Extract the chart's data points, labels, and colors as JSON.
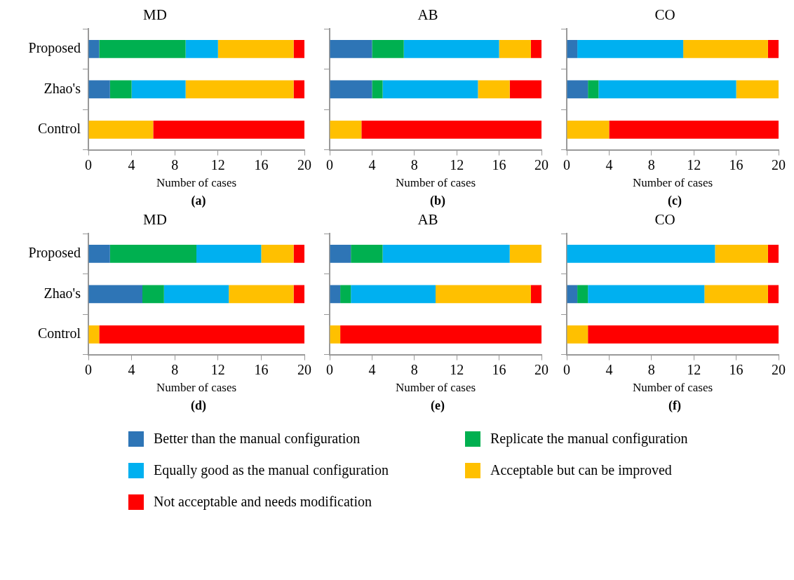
{
  "chart_data": [
    {
      "type": "bar",
      "orientation": "horizontal",
      "stacked": true,
      "title": "MD",
      "xlabel": "Number of cases",
      "annotations": [
        "(a)"
      ],
      "categories": [
        "Proposed",
        "Zhao's",
        "Control"
      ],
      "xlim": [
        0,
        20
      ],
      "xticks": [
        0,
        4,
        8,
        12,
        16,
        20
      ],
      "grid": false,
      "legend": "bottom",
      "series": [
        {
          "name": "Better than the manual configuration",
          "color": "#2e75b6",
          "values": [
            1,
            2,
            0
          ]
        },
        {
          "name": "Replicate the manual configuration",
          "color": "#00b050",
          "values": [
            8,
            2,
            0
          ]
        },
        {
          "name": "Equally good as the manual configuration",
          "color": "#00b0f0",
          "values": [
            3,
            5,
            0
          ]
        },
        {
          "name": "Acceptable but can be improved",
          "color": "#ffc000",
          "values": [
            7,
            10,
            6
          ]
        },
        {
          "name": "Not acceptable and needs modification",
          "color": "#ff0000",
          "values": [
            1,
            1,
            14
          ]
        }
      ]
    },
    {
      "type": "bar",
      "orientation": "horizontal",
      "stacked": true,
      "title": "AB",
      "xlabel": "Number of cases",
      "annotations": [
        "(b)"
      ],
      "categories": [
        null,
        null,
        null
      ],
      "xlim": [
        0,
        20
      ],
      "xticks": [
        0,
        4,
        8,
        12,
        16,
        20
      ],
      "grid": false,
      "tick_labels": "x",
      "series": [
        {
          "color": "#2e75b6",
          "values": [
            4,
            4,
            0
          ]
        },
        {
          "color": "#00b050",
          "values": [
            3,
            1,
            0
          ]
        },
        {
          "color": "#00b0f0",
          "values": [
            9,
            9,
            0
          ]
        },
        {
          "color": "#ffc000",
          "values": [
            3,
            3,
            3
          ]
        },
        {
          "color": "#ff0000",
          "values": [
            1,
            3,
            17
          ]
        }
      ]
    },
    {
      "type": "bar",
      "orientation": "horizontal",
      "stacked": true,
      "title": "CO",
      "xlabel": "Number of cases",
      "annotations": [
        "(c)"
      ],
      "categories": [
        null,
        null,
        null
      ],
      "xlim": [
        0,
        20
      ],
      "xticks": [
        0,
        4,
        8,
        12,
        16,
        20
      ],
      "grid": false,
      "tick_labels": "x",
      "series": [
        {
          "color": "#2e75b6",
          "values": [
            1,
            2,
            0
          ]
        },
        {
          "color": "#00b050",
          "values": [
            0,
            1,
            0
          ]
        },
        {
          "color": "#00b0f0",
          "values": [
            10,
            13,
            0
          ]
        },
        {
          "color": "#ffc000",
          "values": [
            8,
            4,
            4
          ]
        },
        {
          "color": "#ff0000",
          "values": [
            1,
            0,
            16
          ]
        }
      ]
    },
    {
      "type": "bar",
      "orientation": "horizontal",
      "stacked": true,
      "title": "MD",
      "xlabel": "Number of cases",
      "annotations": [
        "(d)"
      ],
      "categories": [
        "Proposed",
        "Zhao's",
        "Control"
      ],
      "xlim": [
        0,
        20
      ],
      "xticks": [
        0,
        4,
        8,
        12,
        16,
        20
      ],
      "grid": false,
      "series": [
        {
          "color": "#2e75b6",
          "values": [
            2,
            5,
            0
          ]
        },
        {
          "color": "#00b050",
          "values": [
            8,
            2,
            0
          ]
        },
        {
          "color": "#00b0f0",
          "values": [
            6,
            6,
            0
          ]
        },
        {
          "color": "#ffc000",
          "values": [
            3,
            6,
            1
          ]
        },
        {
          "color": "#ff0000",
          "values": [
            1,
            1,
            19
          ]
        }
      ]
    },
    {
      "type": "bar",
      "orientation": "horizontal",
      "stacked": true,
      "title": "AB",
      "xlabel": "Number of cases",
      "annotations": [
        "(e)"
      ],
      "categories": [
        null,
        null,
        null
      ],
      "xlim": [
        0,
        20
      ],
      "xticks": [
        0,
        4,
        8,
        12,
        16,
        20
      ],
      "grid": false,
      "tick_labels": "x",
      "series": [
        {
          "color": "#2e75b6",
          "values": [
            2,
            1,
            0
          ]
        },
        {
          "color": "#00b050",
          "values": [
            3,
            1,
            0
          ]
        },
        {
          "color": "#00b0f0",
          "values": [
            12,
            8,
            0
          ]
        },
        {
          "color": "#ffc000",
          "values": [
            3,
            9,
            1
          ]
        },
        {
          "color": "#ff0000",
          "values": [
            0,
            1,
            19
          ]
        }
      ]
    },
    {
      "type": "bar",
      "orientation": "horizontal",
      "stacked": true,
      "title": "CO",
      "xlabel": "Number of cases",
      "annotations": [
        "(f)"
      ],
      "categories": [
        null,
        null,
        null
      ],
      "xlim": [
        0,
        20
      ],
      "xticks": [
        0,
        4,
        8,
        12,
        16,
        20
      ],
      "grid": false,
      "tick_labels": "x",
      "series": [
        {
          "color": "#2e75b6",
          "values": [
            0,
            1,
            0
          ]
        },
        {
          "color": "#00b050",
          "values": [
            0,
            1,
            0
          ]
        },
        {
          "color": "#00b0f0",
          "values": [
            14,
            11,
            0
          ]
        },
        {
          "color": "#ffc000",
          "values": [
            5,
            6,
            2
          ]
        },
        {
          "color": "#ff0000",
          "values": [
            1,
            1,
            18
          ]
        }
      ]
    }
  ]
}
